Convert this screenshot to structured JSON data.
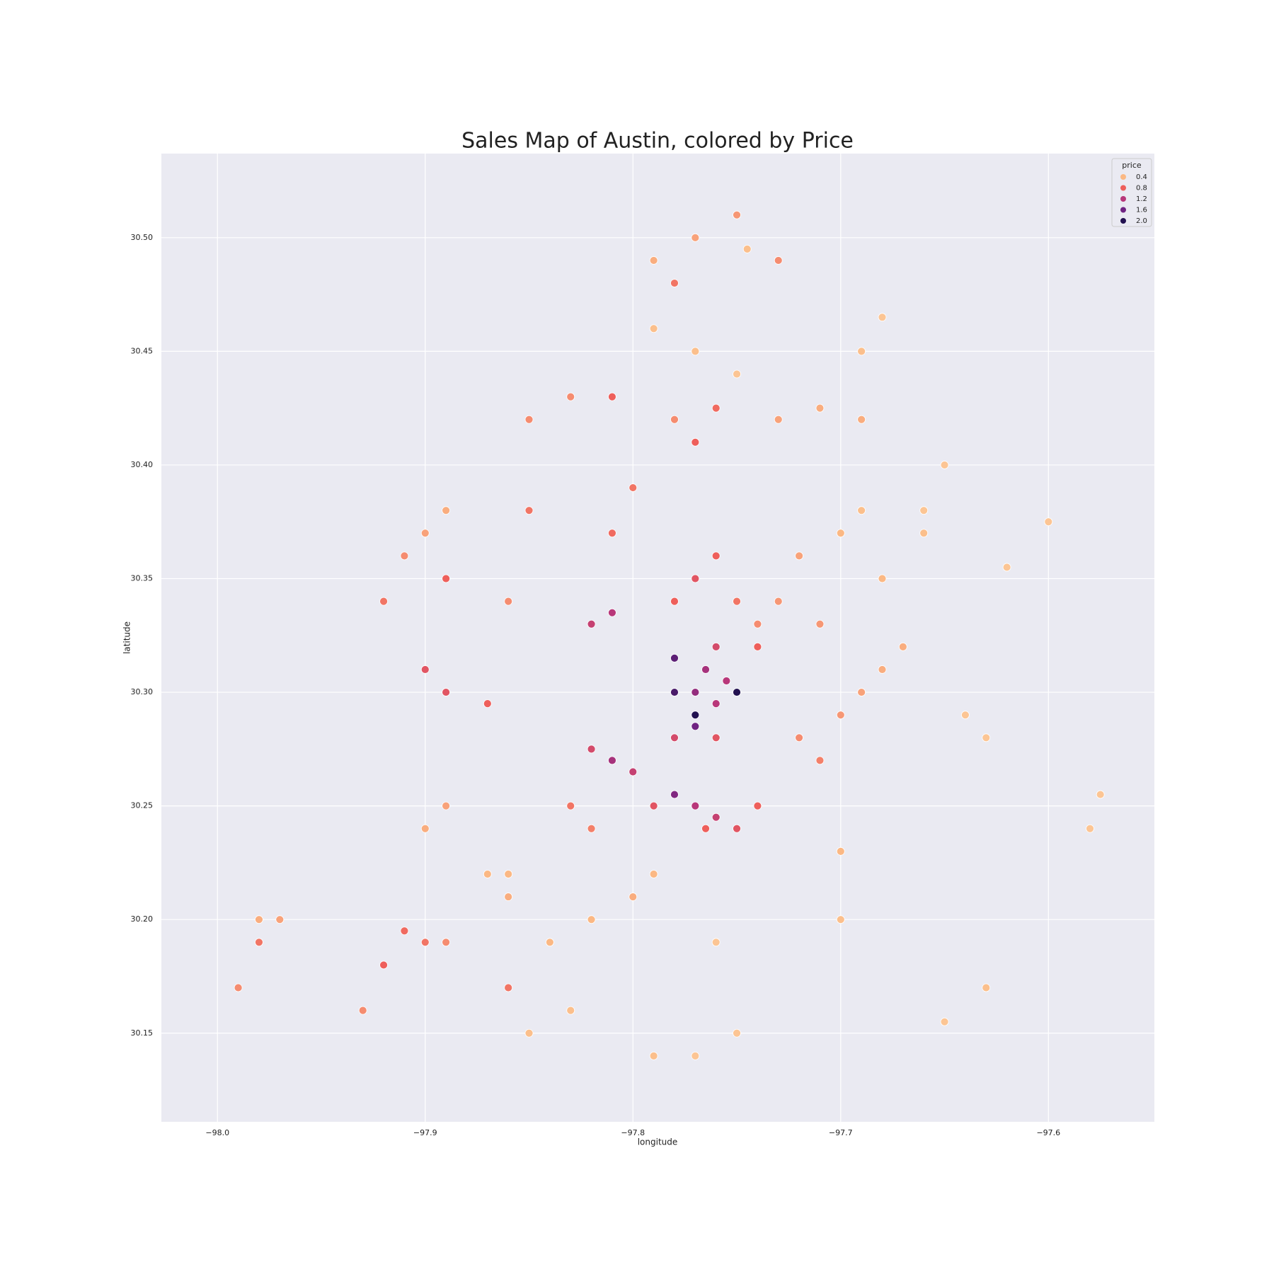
{
  "chart_data": {
    "type": "scatter",
    "title": "Sales Map of Austin, colored by Price",
    "x_label": "longitude",
    "y_label": "latitude",
    "xlim": [
      -98.027,
      -97.549
    ],
    "ylim": [
      30.111,
      30.537
    ],
    "xticks": [
      {
        "value": -98.0,
        "label": "−98.0"
      },
      {
        "value": -97.9,
        "label": "−97.9"
      },
      {
        "value": -97.8,
        "label": "−97.8"
      },
      {
        "value": -97.7,
        "label": "−97.7"
      },
      {
        "value": -97.6,
        "label": "−97.6"
      }
    ],
    "yticks": [
      {
        "value": 30.5,
        "label": "30.50"
      },
      30.45,
      {
        "value": 30.4,
        "label": "30.40"
      },
      30.35,
      {
        "value": 30.3,
        "label": "30.30"
      },
      30.25,
      {
        "value": 30.2,
        "label": "30.20"
      },
      30.15
    ],
    "grid": true,
    "legend_loc": "upper right",
    "legend": {
      "title": "price",
      "values": [
        0.4,
        0.8,
        1.2,
        1.6,
        {
          "value": 2,
          "label": "2.0"
        }
      ],
      "colors": [
        "#fbb884",
        "#ee5f5b",
        "#b8377a",
        "#6f2382",
        "#221150"
      ]
    },
    "x": [
      -97.79,
      -97.77,
      -97.75,
      -97.73,
      -97.78,
      -97.745,
      -97.79,
      -97.77,
      -97.75,
      -97.81,
      -97.83,
      -97.78,
      -97.77,
      -97.76,
      -97.73,
      -97.71,
      -97.69,
      -97.69,
      -97.68,
      -97.9,
      -97.91,
      -97.92,
      -97.89,
      -97.89,
      -97.85,
      -97.86,
      -97.9,
      -97.89,
      -97.87,
      -97.77,
      -97.76,
      -97.78,
      -97.75,
      -97.77,
      -97.765,
      -97.78,
      -97.76,
      -97.77,
      -97.77,
      -97.76,
      -97.78,
      -97.75,
      -97.74,
      -97.73,
      -97.82,
      -97.81,
      -97.81,
      -97.82,
      -97.8,
      -97.79,
      -97.77,
      -97.76,
      -97.75,
      -97.78,
      -97.765,
      -97.74,
      -97.72,
      -97.71,
      -97.7,
      -97.69,
      -97.68,
      -97.7,
      -97.69,
      -97.66,
      -97.65,
      -97.62,
      -97.58,
      -97.575,
      -97.64,
      -97.63,
      -97.82,
      -97.8,
      -97.84,
      -97.86,
      -97.87,
      -97.83,
      -97.85,
      -97.79,
      -97.76,
      -97.75,
      -97.77,
      -97.79,
      -97.9,
      -97.91,
      -97.89,
      -97.92,
      -97.98,
      -97.99,
      -97.98,
      -97.97,
      -97.9,
      -97.89,
      -97.86,
      -97.7,
      -97.7,
      -97.63,
      -97.65,
      -97.83,
      -97.82,
      -97.72,
      -97.74,
      -97.71,
      -97.67,
      -97.85,
      -97.8,
      -97.81,
      -97.76,
      -97.755,
      -97.78,
      -97.93,
      -97.86,
      -97.68,
      -97.66,
      -97.6
    ],
    "y": [
      30.49,
      30.5,
      30.51,
      30.49,
      30.48,
      30.495,
      30.46,
      30.45,
      30.44,
      30.43,
      30.43,
      30.42,
      30.41,
      30.425,
      30.42,
      30.425,
      30.42,
      30.45,
      30.465,
      30.37,
      30.36,
      30.34,
      30.38,
      30.35,
      30.38,
      30.34,
      30.31,
      30.3,
      30.295,
      30.3,
      30.295,
      30.3,
      30.3,
      30.285,
      30.31,
      30.28,
      30.28,
      30.29,
      30.35,
      30.36,
      30.34,
      30.34,
      30.33,
      30.34,
      30.33,
      30.335,
      30.27,
      30.275,
      30.265,
      30.25,
      30.25,
      30.245,
      30.24,
      30.255,
      30.24,
      30.25,
      30.28,
      30.27,
      30.29,
      30.3,
      30.31,
      30.37,
      30.38,
      30.38,
      30.4,
      30.355,
      30.24,
      30.255,
      30.29,
      30.28,
      30.2,
      30.21,
      30.19,
      30.21,
      30.22,
      30.16,
      30.15,
      30.22,
      30.19,
      30.15,
      30.14,
      30.14,
      30.19,
      30.195,
      30.19,
      30.18,
      30.19,
      30.17,
      30.2,
      30.2,
      30.24,
      30.25,
      30.22,
      30.2,
      30.23,
      30.17,
      30.155,
      30.25,
      30.24,
      30.36,
      30.32,
      30.33,
      30.32,
      30.42,
      30.39,
      30.37,
      30.32,
      30.305,
      30.315,
      30.16,
      30.17,
      30.35,
      30.37,
      30.375
    ],
    "price": [
      0.45,
      0.5,
      0.55,
      0.6,
      0.7,
      0.35,
      0.35,
      0.35,
      0.3,
      0.8,
      0.6,
      0.6,
      0.8,
      0.75,
      0.5,
      0.45,
      0.45,
      0.35,
      0.3,
      0.5,
      0.6,
      0.7,
      0.45,
      0.8,
      0.7,
      0.6,
      0.9,
      0.9,
      0.8,
      1.4,
      1.2,
      1.8,
      2.0,
      1.6,
      1.3,
      1.0,
      0.9,
      2.1,
      0.9,
      0.8,
      0.8,
      0.7,
      0.6,
      0.55,
      1.1,
      1.2,
      1.3,
      1.0,
      1.1,
      0.9,
      1.2,
      1.1,
      0.9,
      1.5,
      0.8,
      0.8,
      0.6,
      0.65,
      0.55,
      0.5,
      0.45,
      0.4,
      0.35,
      0.3,
      0.3,
      0.3,
      0.3,
      0.3,
      0.3,
      0.3,
      0.4,
      0.45,
      0.4,
      0.45,
      0.4,
      0.35,
      0.35,
      0.4,
      0.3,
      0.3,
      0.3,
      0.35,
      0.7,
      0.75,
      0.6,
      0.8,
      0.7,
      0.6,
      0.45,
      0.5,
      0.45,
      0.5,
      0.4,
      0.35,
      0.4,
      0.35,
      0.3,
      0.7,
      0.65,
      0.5,
      0.8,
      0.55,
      0.45,
      0.6,
      0.7,
      0.75,
      1.0,
      1.2,
      1.7,
      0.6,
      0.7,
      0.4,
      0.35,
      0.3
    ]
  }
}
